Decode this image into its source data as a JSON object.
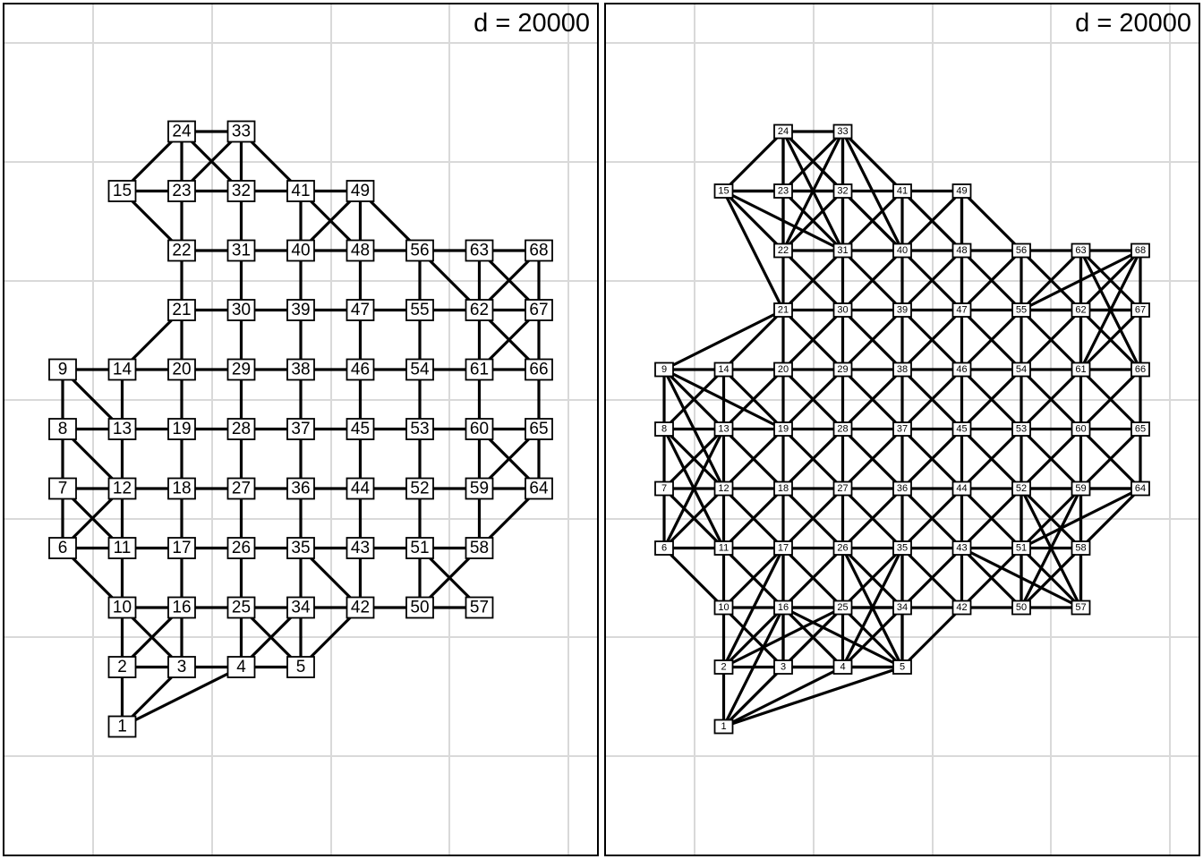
{
  "panels": [
    {
      "id": "left",
      "title": "d = 20000"
    },
    {
      "id": "right",
      "title": "d = 20000"
    }
  ],
  "nodes": [
    {
      "id": "1",
      "x": 1,
      "y": 1
    },
    {
      "id": "2",
      "x": 1,
      "y": 2
    },
    {
      "id": "3",
      "x": 2,
      "y": 2
    },
    {
      "id": "4",
      "x": 3,
      "y": 2
    },
    {
      "id": "5",
      "x": 4,
      "y": 2
    },
    {
      "id": "6",
      "x": 0,
      "y": 4
    },
    {
      "id": "7",
      "x": 0,
      "y": 5
    },
    {
      "id": "8",
      "x": 0,
      "y": 6
    },
    {
      "id": "9",
      "x": 0,
      "y": 7
    },
    {
      "id": "10",
      "x": 1,
      "y": 3
    },
    {
      "id": "11",
      "x": 1,
      "y": 4
    },
    {
      "id": "12",
      "x": 1,
      "y": 5
    },
    {
      "id": "13",
      "x": 1,
      "y": 6
    },
    {
      "id": "14",
      "x": 1,
      "y": 7
    },
    {
      "id": "15",
      "x": 1,
      "y": 10
    },
    {
      "id": "16",
      "x": 2,
      "y": 3
    },
    {
      "id": "17",
      "x": 2,
      "y": 4
    },
    {
      "id": "18",
      "x": 2,
      "y": 5
    },
    {
      "id": "19",
      "x": 2,
      "y": 6
    },
    {
      "id": "20",
      "x": 2,
      "y": 7
    },
    {
      "id": "21",
      "x": 2,
      "y": 8
    },
    {
      "id": "22",
      "x": 2,
      "y": 9
    },
    {
      "id": "23",
      "x": 2,
      "y": 10
    },
    {
      "id": "24",
      "x": 2,
      "y": 11
    },
    {
      "id": "25",
      "x": 3,
      "y": 3
    },
    {
      "id": "26",
      "x": 3,
      "y": 4
    },
    {
      "id": "27",
      "x": 3,
      "y": 5
    },
    {
      "id": "28",
      "x": 3,
      "y": 6
    },
    {
      "id": "29",
      "x": 3,
      "y": 7
    },
    {
      "id": "30",
      "x": 3,
      "y": 8
    },
    {
      "id": "31",
      "x": 3,
      "y": 9
    },
    {
      "id": "32",
      "x": 3,
      "y": 10
    },
    {
      "id": "33",
      "x": 3,
      "y": 11
    },
    {
      "id": "34",
      "x": 4,
      "y": 3
    },
    {
      "id": "35",
      "x": 4,
      "y": 4
    },
    {
      "id": "36",
      "x": 4,
      "y": 5
    },
    {
      "id": "37",
      "x": 4,
      "y": 6
    },
    {
      "id": "38",
      "x": 4,
      "y": 7
    },
    {
      "id": "39",
      "x": 4,
      "y": 8
    },
    {
      "id": "40",
      "x": 4,
      "y": 9
    },
    {
      "id": "41",
      "x": 4,
      "y": 10
    },
    {
      "id": "42",
      "x": 5,
      "y": 3
    },
    {
      "id": "43",
      "x": 5,
      "y": 4
    },
    {
      "id": "44",
      "x": 5,
      "y": 5
    },
    {
      "id": "45",
      "x": 5,
      "y": 6
    },
    {
      "id": "46",
      "x": 5,
      "y": 7
    },
    {
      "id": "47",
      "x": 5,
      "y": 8
    },
    {
      "id": "48",
      "x": 5,
      "y": 9
    },
    {
      "id": "49",
      "x": 5,
      "y": 10
    },
    {
      "id": "50",
      "x": 6,
      "y": 3
    },
    {
      "id": "51",
      "x": 6,
      "y": 4
    },
    {
      "id": "52",
      "x": 6,
      "y": 5
    },
    {
      "id": "53",
      "x": 6,
      "y": 6
    },
    {
      "id": "54",
      "x": 6,
      "y": 7
    },
    {
      "id": "55",
      "x": 6,
      "y": 8
    },
    {
      "id": "56",
      "x": 6,
      "y": 9
    },
    {
      "id": "57",
      "x": 7,
      "y": 3
    },
    {
      "id": "58",
      "x": 7,
      "y": 4
    },
    {
      "id": "59",
      "x": 7,
      "y": 5
    },
    {
      "id": "60",
      "x": 7,
      "y": 6
    },
    {
      "id": "61",
      "x": 7,
      "y": 7
    },
    {
      "id": "62",
      "x": 7,
      "y": 8
    },
    {
      "id": "63",
      "x": 7,
      "y": 9
    },
    {
      "id": "64",
      "x": 8,
      "y": 5
    },
    {
      "id": "65",
      "x": 8,
      "y": 6
    },
    {
      "id": "66",
      "x": 8,
      "y": 7
    },
    {
      "id": "67",
      "x": 8,
      "y": 8
    },
    {
      "id": "68",
      "x": 8,
      "y": 9
    }
  ],
  "edges_left": [
    [
      "1",
      "2"
    ],
    [
      "1",
      "3"
    ],
    [
      "1",
      "4"
    ],
    [
      "2",
      "3"
    ],
    [
      "3",
      "4"
    ],
    [
      "4",
      "5"
    ],
    [
      "2",
      "10"
    ],
    [
      "2",
      "16"
    ],
    [
      "3",
      "10"
    ],
    [
      "3",
      "16"
    ],
    [
      "4",
      "25"
    ],
    [
      "4",
      "34"
    ],
    [
      "5",
      "25"
    ],
    [
      "5",
      "34"
    ],
    [
      "5",
      "42"
    ],
    [
      "10",
      "11"
    ],
    [
      "10",
      "16"
    ],
    [
      "10",
      "6"
    ],
    [
      "6",
      "7"
    ],
    [
      "6",
      "11"
    ],
    [
      "6",
      "12"
    ],
    [
      "7",
      "8"
    ],
    [
      "7",
      "11"
    ],
    [
      "7",
      "12"
    ],
    [
      "8",
      "9"
    ],
    [
      "8",
      "12"
    ],
    [
      "8",
      "13"
    ],
    [
      "9",
      "13"
    ],
    [
      "9",
      "14"
    ],
    [
      "11",
      "12"
    ],
    [
      "11",
      "17"
    ],
    [
      "12",
      "13"
    ],
    [
      "12",
      "18"
    ],
    [
      "13",
      "14"
    ],
    [
      "13",
      "19"
    ],
    [
      "14",
      "20"
    ],
    [
      "14",
      "21"
    ],
    [
      "16",
      "17"
    ],
    [
      "16",
      "25"
    ],
    [
      "17",
      "18"
    ],
    [
      "17",
      "26"
    ],
    [
      "18",
      "19"
    ],
    [
      "18",
      "27"
    ],
    [
      "19",
      "20"
    ],
    [
      "19",
      "28"
    ],
    [
      "20",
      "21"
    ],
    [
      "20",
      "29"
    ],
    [
      "21",
      "22"
    ],
    [
      "21",
      "30"
    ],
    [
      "22",
      "23"
    ],
    [
      "22",
      "31"
    ],
    [
      "22",
      "15"
    ],
    [
      "15",
      "23"
    ],
    [
      "15",
      "24"
    ],
    [
      "23",
      "24"
    ],
    [
      "23",
      "32"
    ],
    [
      "23",
      "33"
    ],
    [
      "24",
      "33"
    ],
    [
      "24",
      "32"
    ],
    [
      "25",
      "26"
    ],
    [
      "25",
      "34"
    ],
    [
      "26",
      "27"
    ],
    [
      "26",
      "35"
    ],
    [
      "27",
      "28"
    ],
    [
      "27",
      "36"
    ],
    [
      "28",
      "29"
    ],
    [
      "28",
      "37"
    ],
    [
      "29",
      "30"
    ],
    [
      "29",
      "38"
    ],
    [
      "30",
      "31"
    ],
    [
      "30",
      "39"
    ],
    [
      "31",
      "32"
    ],
    [
      "31",
      "40"
    ],
    [
      "32",
      "33"
    ],
    [
      "32",
      "41"
    ],
    [
      "33",
      "41"
    ],
    [
      "34",
      "35"
    ],
    [
      "34",
      "42"
    ],
    [
      "35",
      "36"
    ],
    [
      "35",
      "43"
    ],
    [
      "35",
      "42"
    ],
    [
      "36",
      "37"
    ],
    [
      "36",
      "44"
    ],
    [
      "37",
      "38"
    ],
    [
      "37",
      "45"
    ],
    [
      "38",
      "39"
    ],
    [
      "38",
      "46"
    ],
    [
      "39",
      "40"
    ],
    [
      "39",
      "47"
    ],
    [
      "40",
      "41"
    ],
    [
      "40",
      "48"
    ],
    [
      "40",
      "49"
    ],
    [
      "41",
      "49"
    ],
    [
      "41",
      "48"
    ],
    [
      "42",
      "43"
    ],
    [
      "42",
      "50"
    ],
    [
      "43",
      "44"
    ],
    [
      "43",
      "51"
    ],
    [
      "44",
      "45"
    ],
    [
      "44",
      "52"
    ],
    [
      "45",
      "46"
    ],
    [
      "45",
      "53"
    ],
    [
      "46",
      "47"
    ],
    [
      "46",
      "54"
    ],
    [
      "47",
      "48"
    ],
    [
      "47",
      "55"
    ],
    [
      "48",
      "49"
    ],
    [
      "48",
      "56"
    ],
    [
      "49",
      "56"
    ],
    [
      "50",
      "51"
    ],
    [
      "50",
      "57"
    ],
    [
      "50",
      "58"
    ],
    [
      "51",
      "52"
    ],
    [
      "51",
      "58"
    ],
    [
      "51",
      "57"
    ],
    [
      "52",
      "53"
    ],
    [
      "52",
      "59"
    ],
    [
      "53",
      "54"
    ],
    [
      "53",
      "60"
    ],
    [
      "54",
      "55"
    ],
    [
      "54",
      "61"
    ],
    [
      "55",
      "56"
    ],
    [
      "55",
      "62"
    ],
    [
      "56",
      "63"
    ],
    [
      "56",
      "62"
    ],
    [
      "58",
      "59"
    ],
    [
      "58",
      "64"
    ],
    [
      "59",
      "60"
    ],
    [
      "59",
      "64"
    ],
    [
      "59",
      "65"
    ],
    [
      "60",
      "61"
    ],
    [
      "60",
      "65"
    ],
    [
      "60",
      "64"
    ],
    [
      "61",
      "62"
    ],
    [
      "61",
      "66"
    ],
    [
      "61",
      "67"
    ],
    [
      "62",
      "63"
    ],
    [
      "62",
      "67"
    ],
    [
      "62",
      "68"
    ],
    [
      "63",
      "68"
    ],
    [
      "63",
      "67"
    ],
    [
      "64",
      "65"
    ],
    [
      "65",
      "66"
    ],
    [
      "66",
      "67"
    ],
    [
      "66",
      "62"
    ],
    [
      "67",
      "68"
    ]
  ]
}
